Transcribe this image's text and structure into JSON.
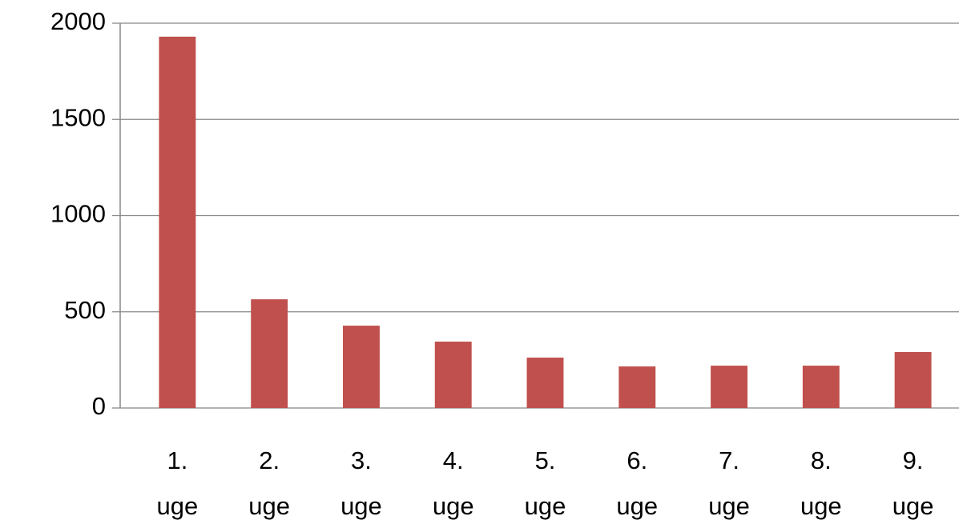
{
  "chart_data": {
    "type": "bar",
    "categories": [
      "1. uge",
      "2. uge",
      "3. uge",
      "4. uge",
      "5. uge",
      "6. uge",
      "7. uge",
      "8. uge",
      "9. uge"
    ],
    "values": [
      1930,
      565,
      428,
      345,
      262,
      216,
      220,
      220,
      291
    ],
    "color": "#c0504d",
    "ylim": [
      0,
      2000
    ],
    "yticks": [
      0,
      500,
      1000,
      1500,
      2000
    ],
    "grid": true
  }
}
